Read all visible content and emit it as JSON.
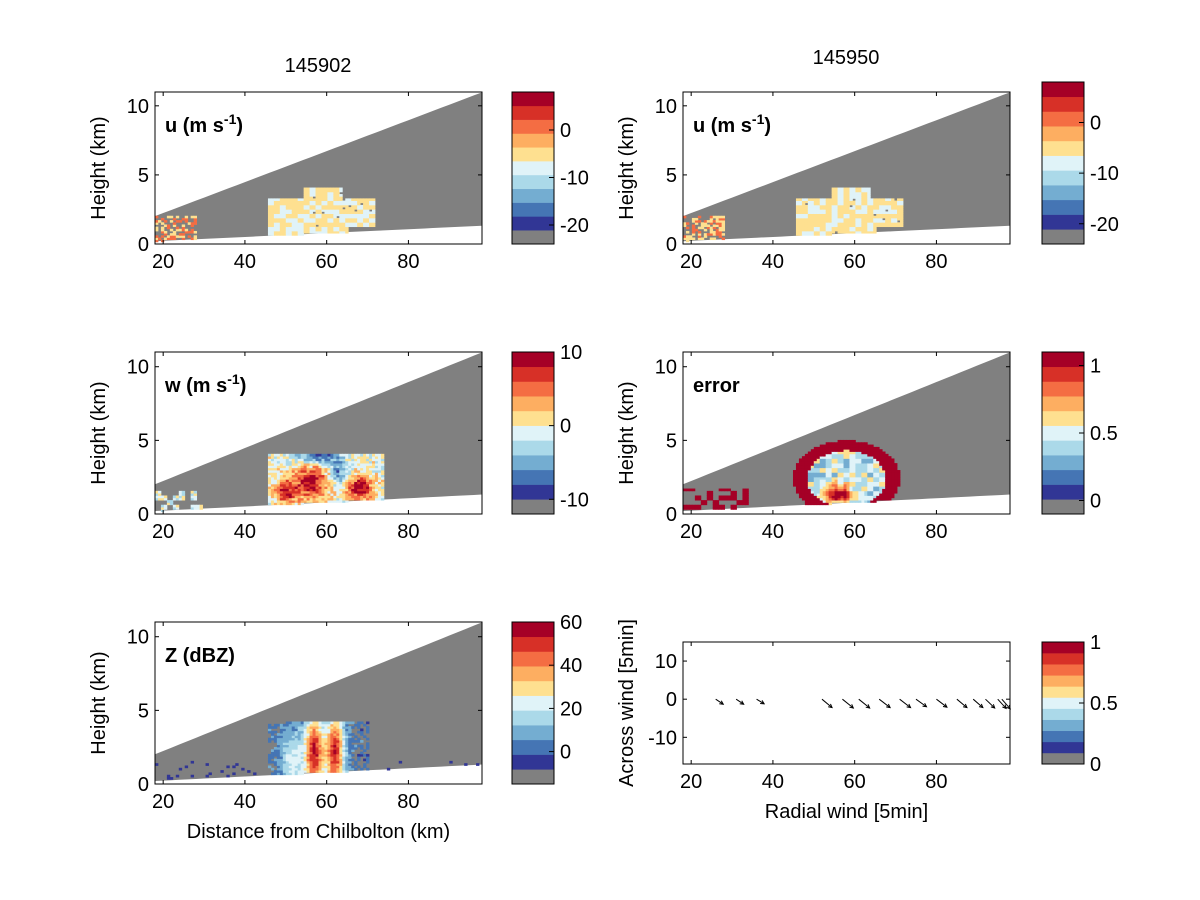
{
  "columns": {
    "left_title": "145902",
    "right_title": "145950"
  },
  "colormap": [
    "#313695",
    "#4575b4",
    "#74add1",
    "#abd9e9",
    "#e0f3f8",
    "#fee090",
    "#fdae61",
    "#f46d43",
    "#d73027",
    "#a50026"
  ],
  "colors": {
    "nodata": "#808080",
    "background": "#ffffff",
    "arrow": "#000000"
  },
  "chart_data": [
    {
      "type": "heatmap",
      "panel": "u-left",
      "label": "u (m s",
      "label_sup": "-1",
      "label_tail": ")",
      "ylabel": "Height (km)",
      "xlabel": "",
      "xlim": [
        18,
        98
      ],
      "ylim": [
        0,
        11
      ],
      "xticks": [
        20,
        40,
        60,
        80
      ],
      "yticks": [
        0,
        5,
        10
      ],
      "colorbar": {
        "range": [
          -24,
          8
        ],
        "ticks": [
          0,
          -10,
          -20
        ],
        "tick_labels": [
          "0",
          "-10",
          "-20"
        ]
      },
      "field": "u_left"
    },
    {
      "type": "heatmap",
      "panel": "u-right",
      "label": "u (m s",
      "label_sup": "-1",
      "label_tail": ")",
      "ylabel": "Height (km)",
      "xlabel": "",
      "xlim": [
        18,
        98
      ],
      "ylim": [
        0,
        11
      ],
      "xticks": [
        20,
        40,
        60,
        80
      ],
      "yticks": [
        0,
        5,
        10
      ],
      "colorbar": {
        "range": [
          -24,
          8
        ],
        "ticks": [
          0,
          -10,
          -20
        ],
        "tick_labels": [
          "0",
          "-10",
          "-20"
        ]
      },
      "field": "u_right"
    },
    {
      "type": "heatmap",
      "panel": "w",
      "label": "w (m s",
      "label_sup": "-1",
      "label_tail": ")",
      "ylabel": "Height (km)",
      "xlabel": "",
      "xlim": [
        18,
        98
      ],
      "ylim": [
        0,
        11
      ],
      "xticks": [
        20,
        40,
        60,
        80
      ],
      "yticks": [
        0,
        5,
        10
      ],
      "colorbar": {
        "range": [
          -12,
          10
        ],
        "ticks": [
          10,
          0,
          -10
        ],
        "tick_labels": [
          "10",
          "0",
          "-10"
        ]
      },
      "field": "w"
    },
    {
      "type": "heatmap",
      "panel": "error",
      "label": "error",
      "label_sup": "",
      "label_tail": "",
      "ylabel": "Height (km)",
      "xlabel": "",
      "xlim": [
        18,
        98
      ],
      "ylim": [
        0,
        11
      ],
      "xticks": [
        20,
        40,
        60,
        80
      ],
      "yticks": [
        0,
        5,
        10
      ],
      "colorbar": {
        "range": [
          -0.1,
          1.1
        ],
        "ticks": [
          1,
          0.5,
          0
        ],
        "tick_labels": [
          "1",
          "0.5",
          "0"
        ]
      },
      "field": "error"
    },
    {
      "type": "heatmap",
      "panel": "reflectivity",
      "label": "Z (dBZ)",
      "label_sup": "",
      "label_tail": "",
      "ylabel": "Height (km)",
      "xlabel": "Distance from Chilbolton (km)",
      "xlim": [
        18,
        98
      ],
      "ylim": [
        0,
        11
      ],
      "xticks": [
        20,
        40,
        60,
        80
      ],
      "yticks": [
        0,
        5,
        10
      ],
      "colorbar": {
        "range": [
          -15,
          60
        ],
        "ticks": [
          60,
          40,
          20,
          0
        ],
        "tick_labels": [
          "60",
          "40",
          "20",
          "0"
        ]
      },
      "field": "z"
    },
    {
      "type": "scatter",
      "panel": "wind-vectors",
      "label": "",
      "ylabel": "Across wind [5min]",
      "xlabel": "Radial wind [5min]",
      "xlim": [
        18,
        98
      ],
      "ylim": [
        -17,
        15
      ],
      "xticks": [
        20,
        40,
        60,
        80
      ],
      "yticks": [
        10,
        0,
        -10
      ],
      "colorbar": {
        "range": [
          0,
          1
        ],
        "ticks": [
          1,
          0.5,
          0
        ],
        "tick_labels": [
          "1",
          "0.5",
          "0"
        ]
      },
      "x": [
        26,
        31,
        36,
        52,
        57,
        61,
        66,
        71,
        75,
        80,
        85,
        89,
        92,
        95,
        96
      ],
      "y": [
        0,
        0,
        0,
        0,
        0,
        0,
        0,
        0,
        0,
        0,
        0,
        0,
        0,
        0,
        0
      ],
      "u": [
        1.8,
        1.8,
        1.8,
        2.4,
        2.6,
        2.6,
        2.6,
        2.6,
        2.5,
        2.5,
        2.4,
        2.3,
        2.2,
        2.0,
        2.0
      ],
      "v": [
        -1.2,
        -1.2,
        -1.1,
        -2.0,
        -2.1,
        -2.1,
        -2.0,
        -2.0,
        -1.8,
        -1.9,
        -2.0,
        -2.0,
        -2.1,
        -2.2,
        -2.3
      ]
    }
  ]
}
